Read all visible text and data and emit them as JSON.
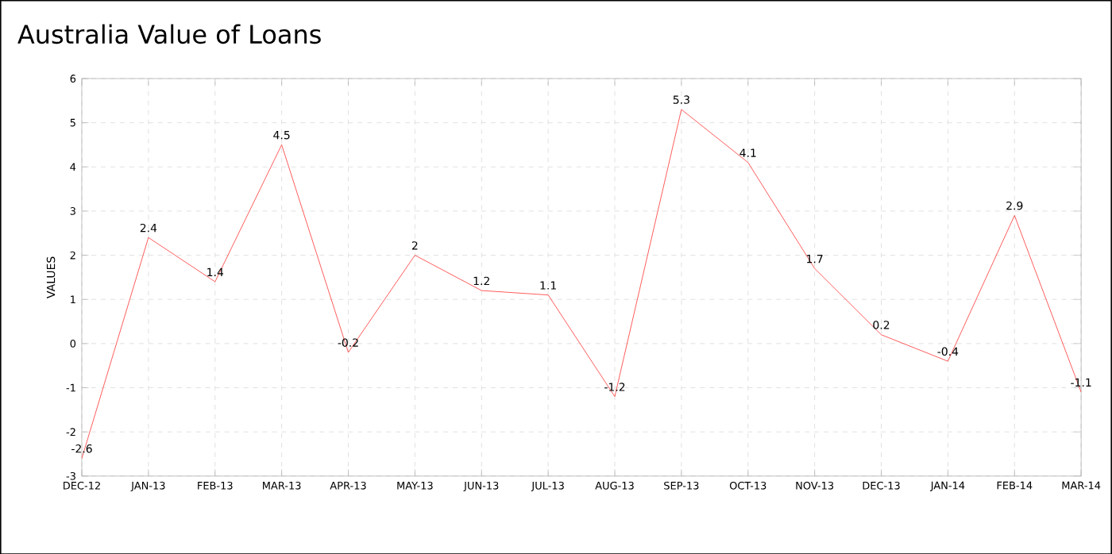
{
  "chart_data": {
    "type": "line",
    "title": "Australia Value of Loans",
    "ylabel": "VALUES",
    "categories": [
      "DEC-12",
      "JAN-13",
      "FEB-13",
      "MAR-13",
      "APR-13",
      "MAY-13",
      "JUN-13",
      "JUL-13",
      "AUG-13",
      "SEP-13",
      "OCT-13",
      "NOV-13",
      "DEC-13",
      "JAN-14",
      "FEB-14",
      "MAR-14"
    ],
    "values": [
      -2.6,
      2.4,
      1.4,
      4.5,
      -0.2,
      2,
      1.2,
      1.1,
      -1.2,
      5.3,
      4.1,
      1.7,
      0.2,
      -0.4,
      2.9,
      -1.1
    ],
    "color": "#ff3333",
    "ylim": [
      -3,
      6
    ],
    "yticks": [
      -3,
      -2,
      -1,
      0,
      1,
      2,
      3,
      4,
      5,
      6
    ],
    "grid": true,
    "data_labels": true,
    "marker": "none",
    "line_style": "solid"
  }
}
